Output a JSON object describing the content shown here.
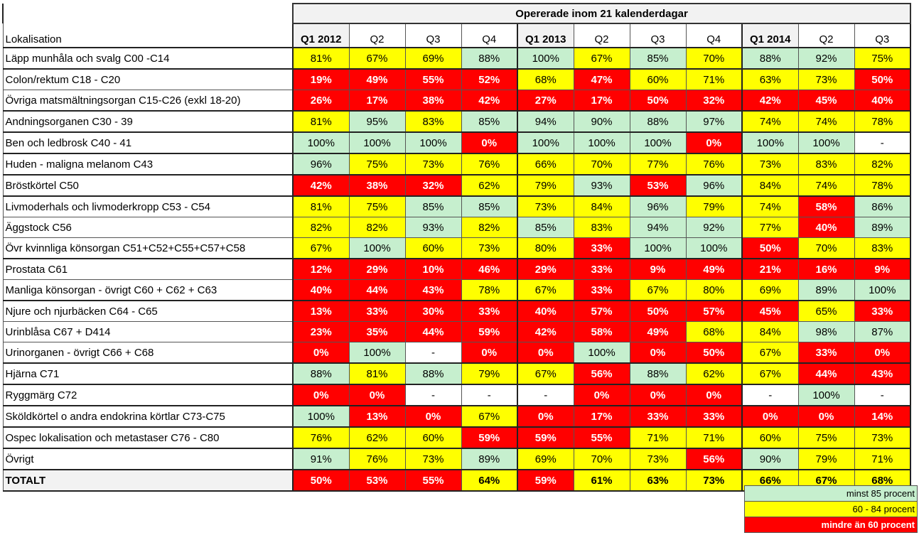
{
  "chart_data": {
    "type": "table",
    "title": "Opererade inom 21 kalenderdagar",
    "row_header": "Lokalisation",
    "columns": [
      "Q1 2012",
      "Q2",
      "Q3",
      "Q4",
      "Q1 2013",
      "Q2",
      "Q3",
      "Q4",
      "Q1 2014",
      "Q2",
      "Q3"
    ],
    "rows": [
      {
        "label": "Läpp munhåla och svalg C00 -C14",
        "values": [
          "81%",
          "67%",
          "69%",
          "88%",
          "100%",
          "67%",
          "85%",
          "70%",
          "88%",
          "92%",
          "75%"
        ]
      },
      {
        "label": "Colon/rektum C18 - C20",
        "values": [
          "19%",
          "49%",
          "55%",
          "52%",
          "68%",
          "47%",
          "60%",
          "71%",
          "63%",
          "73%",
          "50%"
        ]
      },
      {
        "label": "Övriga matsmältningsorgan C15-C26 (exkl 18-20)",
        "values": [
          "26%",
          "17%",
          "38%",
          "42%",
          "27%",
          "17%",
          "50%",
          "32%",
          "42%",
          "45%",
          "40%"
        ]
      },
      {
        "label": "Andningsorganen C30 - 39",
        "values": [
          "81%",
          "95%",
          "83%",
          "85%",
          "94%",
          "90%",
          "88%",
          "97%",
          "74%",
          "74%",
          "78%"
        ]
      },
      {
        "label": "Ben och ledbrosk C40 - 41",
        "values": [
          "100%",
          "100%",
          "100%",
          "0%",
          "100%",
          "100%",
          "100%",
          "0%",
          "100%",
          "100%",
          "-"
        ]
      },
      {
        "label": "Huden - maligna melanom C43",
        "values": [
          "96%",
          "75%",
          "73%",
          "76%",
          "66%",
          "70%",
          "77%",
          "76%",
          "73%",
          "83%",
          "82%"
        ]
      },
      {
        "label": "Bröstkörtel C50",
        "values": [
          "42%",
          "38%",
          "32%",
          "62%",
          "79%",
          "93%",
          "53%",
          "96%",
          "84%",
          "74%",
          "78%"
        ]
      },
      {
        "label": "Livmoderhals och livmoderkropp C53 - C54",
        "values": [
          "81%",
          "75%",
          "85%",
          "85%",
          "73%",
          "84%",
          "96%",
          "79%",
          "74%",
          "58%",
          "86%"
        ]
      },
      {
        "label": "Äggstock C56",
        "values": [
          "82%",
          "82%",
          "93%",
          "82%",
          "85%",
          "83%",
          "94%",
          "92%",
          "77%",
          "40%",
          "89%"
        ]
      },
      {
        "label": "Övr kvinnliga könsorgan C51+C52+C55+C57+C58",
        "values": [
          "67%",
          "100%",
          "60%",
          "73%",
          "80%",
          "33%",
          "100%",
          "100%",
          "50%",
          "70%",
          "83%"
        ]
      },
      {
        "label": "Prostata C61",
        "values": [
          "12%",
          "29%",
          "10%",
          "46%",
          "29%",
          "33%",
          "9%",
          "49%",
          "21%",
          "16%",
          "9%"
        ]
      },
      {
        "label": "Manliga könsorgan - övrigt   C60 + C62 + C63",
        "values": [
          "40%",
          "44%",
          "43%",
          "78%",
          "67%",
          "33%",
          "67%",
          "80%",
          "69%",
          "89%",
          "100%"
        ]
      },
      {
        "label": "Njure och njurbäcken C64 - C65",
        "values": [
          "13%",
          "33%",
          "30%",
          "33%",
          "40%",
          "57%",
          "50%",
          "57%",
          "45%",
          "65%",
          "33%"
        ]
      },
      {
        "label": "Urinblåsa C67 + D414",
        "values": [
          "23%",
          "35%",
          "44%",
          "59%",
          "42%",
          "58%",
          "49%",
          "68%",
          "84%",
          "98%",
          "87%"
        ]
      },
      {
        "label": "Urinorganen - övrigt C66 + C68",
        "values": [
          "0%",
          "100%",
          "-",
          "0%",
          "0%",
          "100%",
          "0%",
          "50%",
          "67%",
          "33%",
          "0%"
        ]
      },
      {
        "label": "Hjärna C71",
        "values": [
          "88%",
          "81%",
          "88%",
          "79%",
          "67%",
          "56%",
          "88%",
          "62%",
          "67%",
          "44%",
          "43%"
        ]
      },
      {
        "label": "Ryggmärg C72",
        "values": [
          "0%",
          "0%",
          "-",
          "-",
          "-",
          "0%",
          "0%",
          "0%",
          "-",
          "100%",
          "-"
        ]
      },
      {
        "label": "Sköldkörtel o andra endokrina körtlar C73-C75",
        "values": [
          "100%",
          "13%",
          "0%",
          "67%",
          "0%",
          "17%",
          "33%",
          "33%",
          "0%",
          "0%",
          "14%"
        ]
      },
      {
        "label": "Ospec lokalisation och metastaser C76 - C80",
        "values": [
          "76%",
          "62%",
          "60%",
          "59%",
          "59%",
          "55%",
          "71%",
          "71%",
          "60%",
          "75%",
          "73%"
        ]
      },
      {
        "label": "Övrigt",
        "values": [
          "91%",
          "76%",
          "73%",
          "89%",
          "69%",
          "70%",
          "73%",
          "56%",
          "90%",
          "79%",
          "71%"
        ]
      },
      {
        "label": "TOTALT",
        "values": [
          "50%",
          "53%",
          "55%",
          "64%",
          "59%",
          "61%",
          "63%",
          "73%",
          "66%",
          "67%",
          "68%"
        ]
      }
    ],
    "legend": [
      {
        "label": "minst 85 procent",
        "color": "#c6efce"
      },
      {
        "label": "60 - 84 procent",
        "color": "#ffff00"
      },
      {
        "label": "mindre än 60 procent",
        "color": "#ff0000"
      }
    ]
  }
}
